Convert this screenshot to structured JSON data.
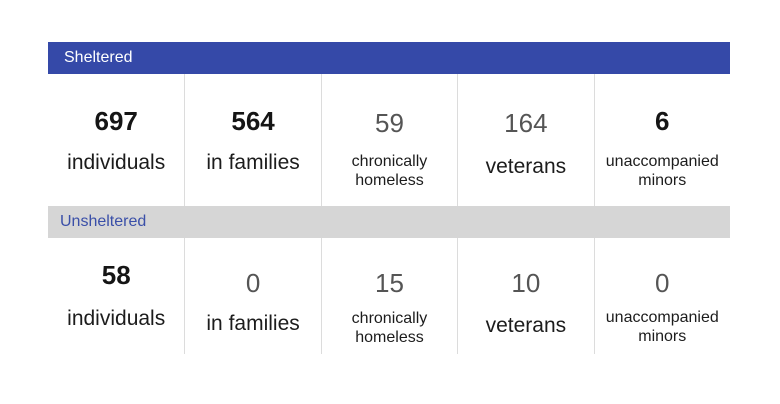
{
  "sections": [
    {
      "title": "Sheltered",
      "stats": [
        {
          "value": "697",
          "label": "individuals"
        },
        {
          "value": "564",
          "label": "in families"
        },
        {
          "value": "59",
          "label_line1": "chronically",
          "label_line2": "homeless"
        },
        {
          "value": "164",
          "label": "veterans"
        },
        {
          "value": "6",
          "label_line1": "unaccompanied",
          "label_line2": "minors"
        }
      ]
    },
    {
      "title": "Unsheltered",
      "stats": [
        {
          "value": "58",
          "label": "individuals"
        },
        {
          "value": "0",
          "label": "in families"
        },
        {
          "value": "15",
          "label_line1": "chronically",
          "label_line2": "homeless"
        },
        {
          "value": "10",
          "label": "veterans"
        },
        {
          "value": "0",
          "label_line1": "unaccompanied",
          "label_line2": "minors"
        }
      ]
    }
  ],
  "colors": {
    "sheltered_banner": "#3549a8",
    "unsheltered_banner": "#d6d6d6",
    "unsheltered_title": "#3a4fa8"
  }
}
